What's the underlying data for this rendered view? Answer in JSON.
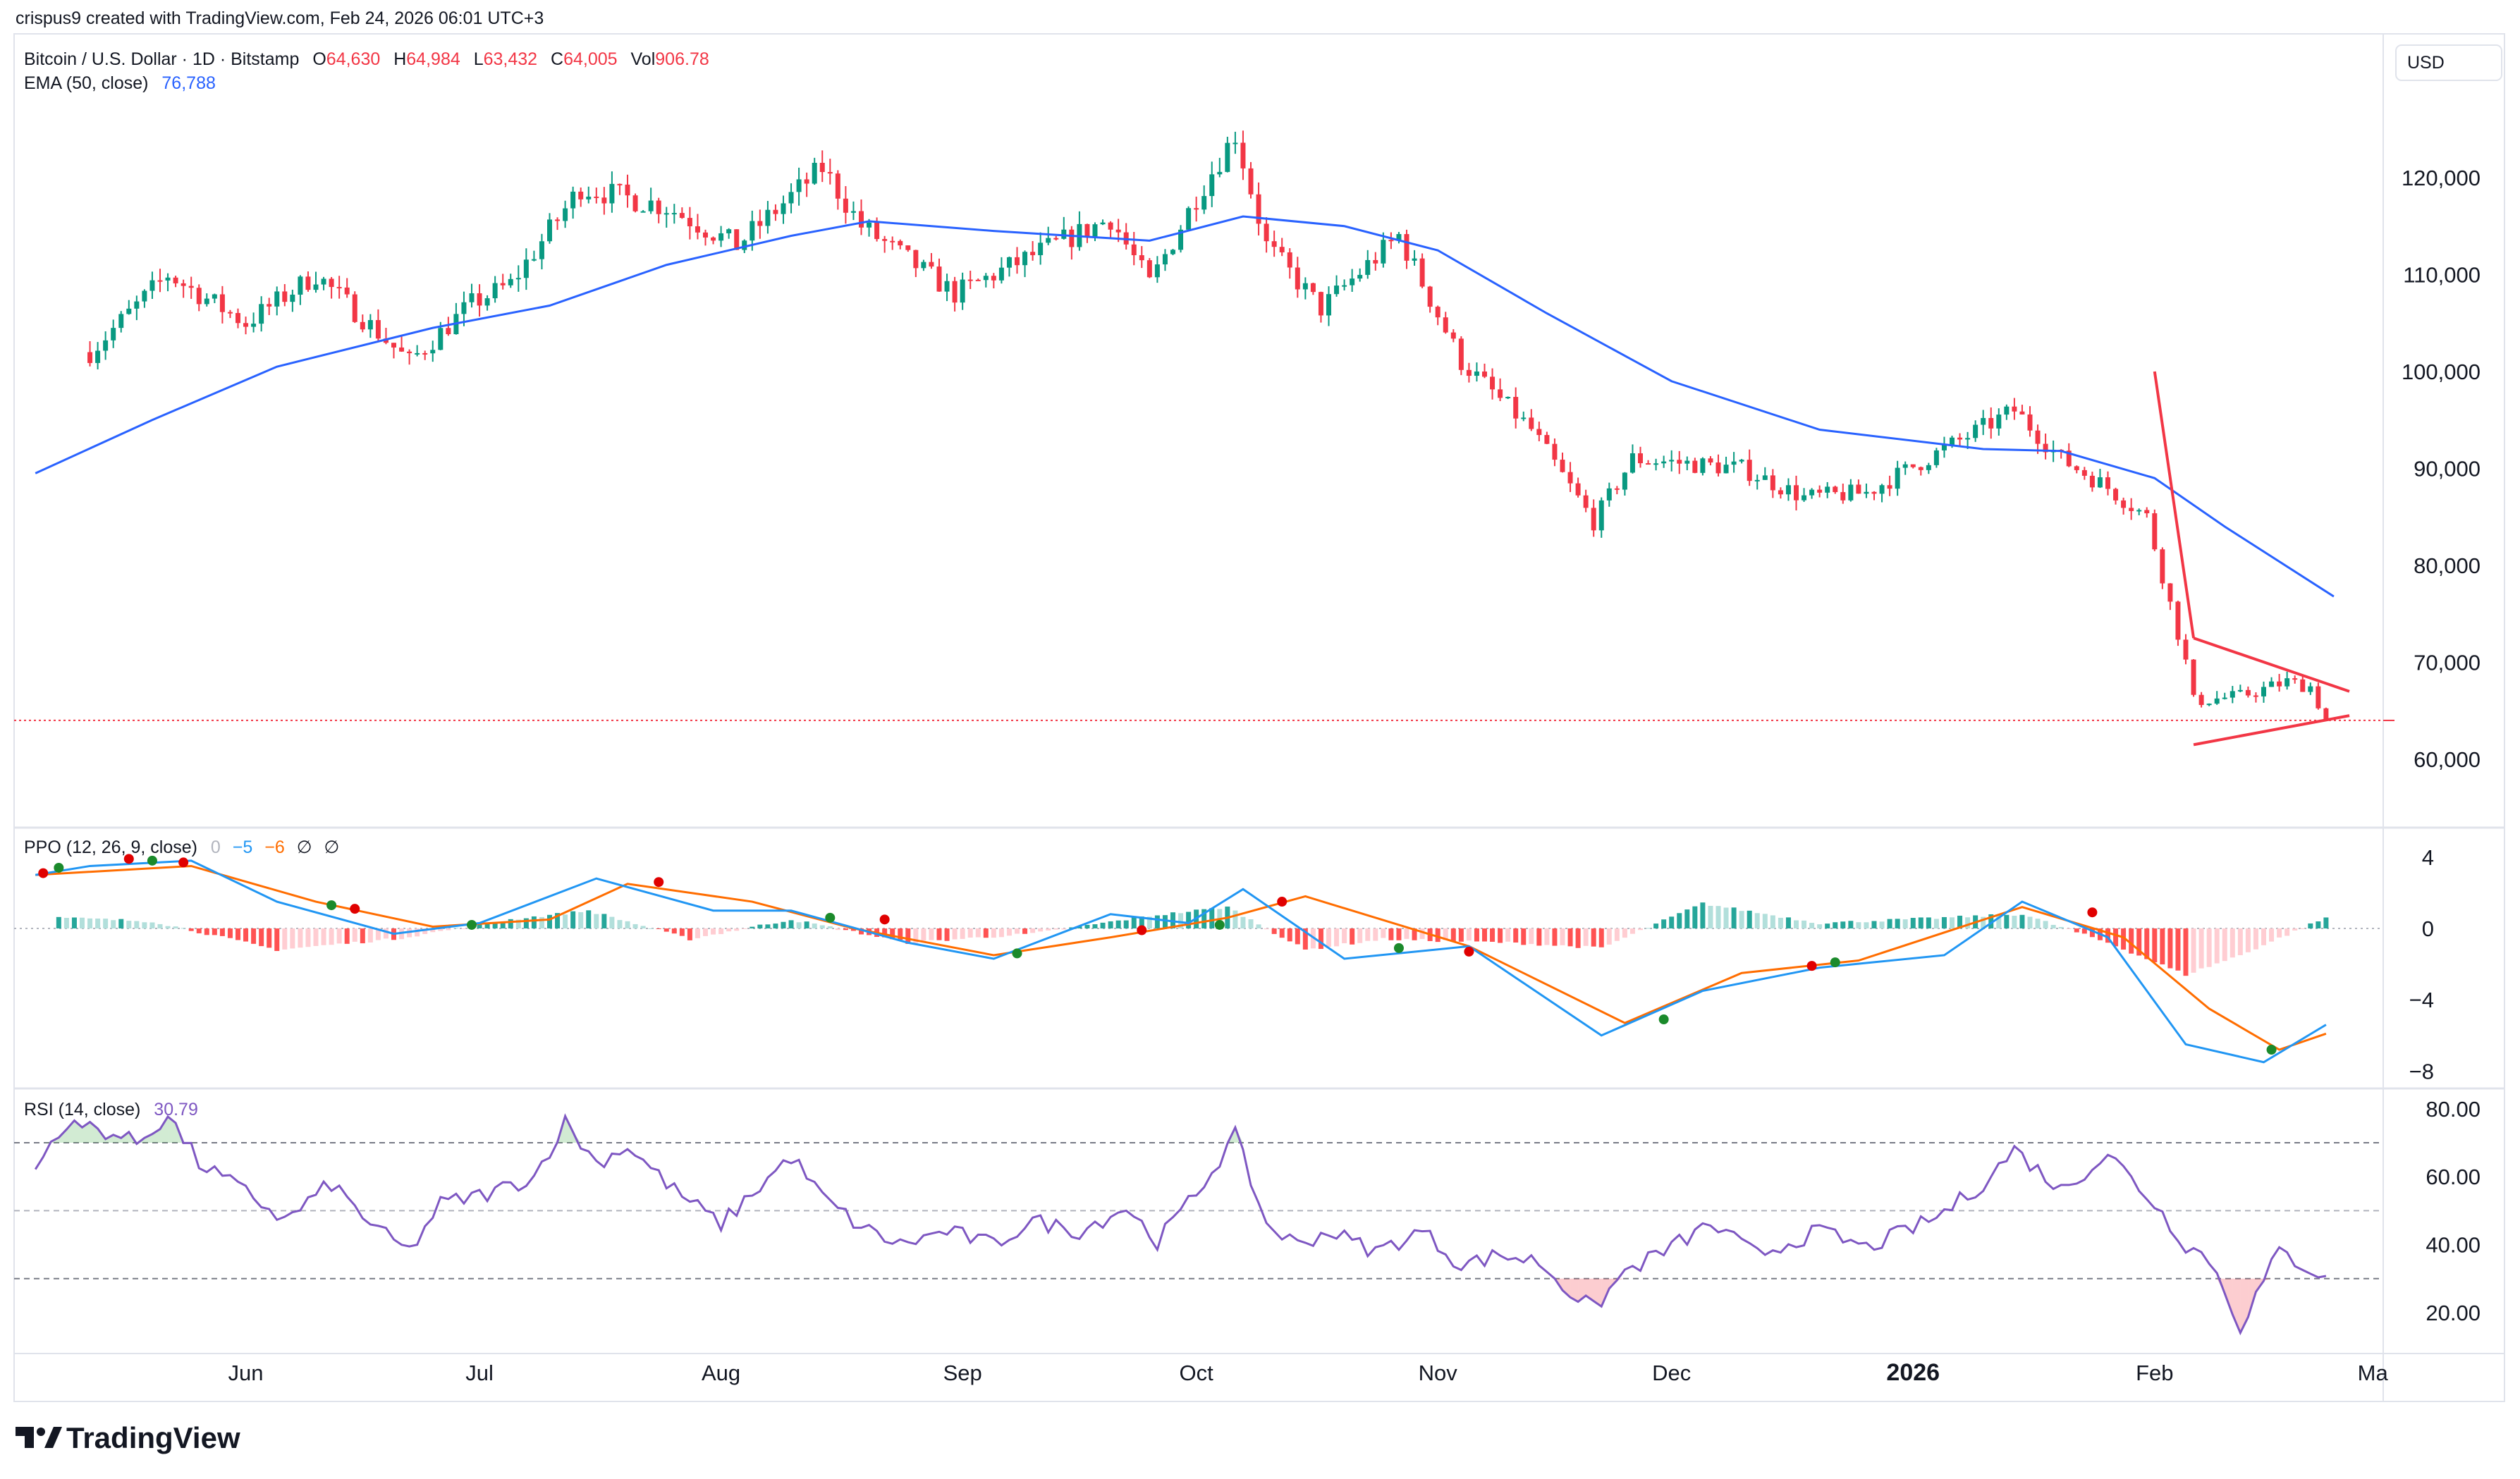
{
  "caption": "crispus9 created with TradingView.com, Feb 24, 2026 06:01 UTC+3",
  "brand": "TradingView",
  "currency_label": "USD",
  "header": {
    "symbol": "Bitcoin / U.S. Dollar · 1D · Bitstamp",
    "o_label": "O",
    "o_value": "64,630",
    "h_label": "H",
    "h_value": "64,984",
    "l_label": "L",
    "l_value": "63,432",
    "c_label": "C",
    "c_value": "64,005",
    "vol_label": "Vol",
    "vol_value": "906.78",
    "ema_label": "EMA (50, close)",
    "ema_value": "76,788"
  },
  "ppo_header": {
    "label": "PPO (12, 26, 9, close)",
    "v0": "0",
    "v1": "−5",
    "v2": "−6",
    "v3": "∅",
    "v4": "∅"
  },
  "rsi_header": {
    "label": "RSI (14, close)",
    "value": "30.79"
  },
  "colors": {
    "up": "#089981",
    "down": "#f23645",
    "ema": "#2962ff",
    "ppo": "#2196f3",
    "signal": "#ff6d00",
    "rsi": "#7e57c2",
    "trendline": "#f23645"
  },
  "chart_data": [
    {
      "type": "candlestick",
      "title": "Bitcoin / U.S. Dollar · 1D · Bitstamp",
      "x_ticks": [
        "Jun",
        "Jul",
        "Aug",
        "Sep",
        "Oct",
        "Nov",
        "Dec",
        "2026",
        "Feb",
        "Ma"
      ],
      "y_ticks": [
        60000,
        70000,
        80000,
        90000,
        100000,
        110000,
        120000
      ],
      "y_tick_labels": [
        "60,000",
        "70,000",
        "80,000",
        "90,000",
        "100,000",
        "110,000",
        "120,000"
      ],
      "ylim": [
        56000,
        128000
      ],
      "last_price": 64005,
      "close_series": {
        "name": "close",
        "dates": [
          "2025-05-12",
          "2025-05-22",
          "2025-06-01",
          "2025-06-10",
          "2025-06-22",
          "2025-06-30",
          "2025-07-05",
          "2025-07-14",
          "2025-07-25",
          "2025-08-03",
          "2025-08-14",
          "2025-08-19",
          "2025-08-31",
          "2025-09-10",
          "2025-09-20",
          "2025-09-25",
          "2025-10-01",
          "2025-10-06",
          "2025-10-10",
          "2025-10-17",
          "2025-10-27",
          "2025-11-04",
          "2025-11-13",
          "2025-11-21",
          "2025-11-26",
          "2025-12-10",
          "2025-12-18",
          "2025-12-26",
          "2026-01-05",
          "2026-01-14",
          "2026-01-20",
          "2026-01-26",
          "2026-01-31",
          "2026-02-05",
          "2026-02-06",
          "2026-02-12",
          "2026-02-18",
          "2026-02-21",
          "2026-02-23"
        ],
        "values": [
          102000,
          110000,
          105000,
          110000,
          101000,
          107000,
          109000,
          119000,
          117000,
          113000,
          121000,
          115000,
          108000,
          112000,
          115800,
          109000,
          118000,
          124500,
          113000,
          106500,
          114000,
          101000,
          94000,
          84500,
          91000,
          90000,
          87000,
          87500,
          92000,
          96000,
          91000,
          88000,
          85000,
          70000,
          66000,
          66500,
          68000,
          67500,
          64005
        ]
      },
      "ema_series": {
        "name": "EMA (50, close)",
        "dates": [
          "2025-05-05",
          "2025-05-20",
          "2025-06-05",
          "2025-06-25",
          "2025-07-10",
          "2025-07-25",
          "2025-08-10",
          "2025-08-20",
          "2025-09-05",
          "2025-09-25",
          "2025-10-07",
          "2025-10-20",
          "2025-11-01",
          "2025-11-15",
          "2025-12-01",
          "2025-12-20",
          "2026-01-10",
          "2026-01-20",
          "2026-02-01",
          "2026-02-10",
          "2026-02-24"
        ],
        "values": [
          89500,
          95000,
          100500,
          104500,
          106800,
          111000,
          114000,
          115500,
          114500,
          113500,
          116000,
          115000,
          112500,
          106000,
          99000,
          94000,
          92000,
          91800,
          89000,
          84000,
          76788
        ]
      },
      "annotations": [
        {
          "type": "trendline",
          "from": [
            "2026-02-01",
            100000
          ],
          "to": [
            "2026-02-06",
            72500
          ]
        },
        {
          "type": "trendline",
          "from": [
            "2026-02-06",
            72500
          ],
          "to": [
            "2026-02-26",
            67000
          ]
        },
        {
          "type": "trendline",
          "from": [
            "2026-02-06",
            61500
          ],
          "to": [
            "2026-02-26",
            64500
          ]
        }
      ]
    },
    {
      "type": "line",
      "title": "PPO (12, 26, 9, close)",
      "y_ticks": [
        4,
        0,
        -4,
        -8
      ],
      "y_tick_labels": [
        "4",
        "0",
        "−4",
        "−8"
      ],
      "ylim": [
        -9,
        5
      ],
      "series": [
        {
          "name": "ppo",
          "dates": [
            "2025-05-05",
            "2025-05-12",
            "2025-05-25",
            "2025-06-05",
            "2025-06-20",
            "2025-07-01",
            "2025-07-16",
            "2025-07-31",
            "2025-08-10",
            "2025-08-25",
            "2025-09-05",
            "2025-09-20",
            "2025-09-30",
            "2025-10-07",
            "2025-10-20",
            "2025-11-05",
            "2025-11-22",
            "2025-12-05",
            "2025-12-20",
            "2026-01-05",
            "2026-01-15",
            "2026-01-26",
            "2026-02-05",
            "2026-02-15",
            "2026-02-23"
          ],
          "values": [
            3.0,
            3.5,
            3.8,
            1.5,
            -0.3,
            0.3,
            2.8,
            1.0,
            1.0,
            -0.8,
            -1.7,
            0.8,
            0.3,
            2.2,
            -1.7,
            -1.0,
            -6.0,
            -3.5,
            -2.2,
            -1.5,
            1.5,
            -0.5,
            -6.5,
            -7.5,
            -5.4
          ]
        },
        {
          "name": "signal",
          "dates": [
            "2025-05-05",
            "2025-05-25",
            "2025-06-10",
            "2025-06-25",
            "2025-07-10",
            "2025-07-20",
            "2025-08-05",
            "2025-08-18",
            "2025-09-05",
            "2025-09-20",
            "2025-10-05",
            "2025-10-15",
            "2025-11-05",
            "2025-11-25",
            "2025-12-10",
            "2025-12-25",
            "2026-01-15",
            "2026-01-28",
            "2026-02-08",
            "2026-02-17",
            "2026-02-23"
          ],
          "values": [
            3.0,
            3.5,
            1.5,
            0.1,
            0.5,
            2.5,
            1.5,
            0.0,
            -1.5,
            -0.5,
            0.6,
            1.8,
            -1.0,
            -5.3,
            -2.5,
            -1.8,
            1.2,
            -0.5,
            -4.5,
            -6.8,
            -5.9
          ]
        }
      ],
      "histogram": {
        "dates": [
          "2025-05-08",
          "2025-05-20",
          "2025-06-05",
          "2025-06-20",
          "2025-07-05",
          "2025-07-15",
          "2025-07-28",
          "2025-08-10",
          "2025-08-25",
          "2025-09-10",
          "2025-09-25",
          "2025-10-05",
          "2025-10-15",
          "2025-10-25",
          "2025-11-10",
          "2025-11-22",
          "2025-12-05",
          "2025-12-20",
          "2026-01-05",
          "2026-01-15",
          "2026-01-26",
          "2026-02-05",
          "2026-02-12",
          "2026-02-23"
        ],
        "values": [
          0.6,
          0.4,
          -1.2,
          -0.6,
          0.5,
          1.0,
          -0.6,
          0.5,
          -0.8,
          -0.3,
          0.7,
          1.2,
          -1.2,
          -0.6,
          -0.8,
          -1.1,
          1.4,
          0.3,
          0.6,
          0.8,
          -0.8,
          -2.6,
          -1.5,
          0.6
        ]
      },
      "cross_points": [
        {
          "date": "2025-05-06",
          "value": 3.1,
          "kind": "bearish"
        },
        {
          "date": "2025-05-08",
          "value": 3.4,
          "kind": "bullish"
        },
        {
          "date": "2025-05-17",
          "value": 3.9,
          "kind": "bearish"
        },
        {
          "date": "2025-05-20",
          "value": 3.8,
          "kind": "bullish"
        },
        {
          "date": "2025-05-24",
          "value": 3.7,
          "kind": "bearish"
        },
        {
          "date": "2025-06-12",
          "value": 1.3,
          "kind": "bullish"
        },
        {
          "date": "2025-06-15",
          "value": 1.1,
          "kind": "bearish"
        },
        {
          "date": "2025-06-30",
          "value": 0.2,
          "kind": "bullish"
        },
        {
          "date": "2025-07-24",
          "value": 2.6,
          "kind": "bearish"
        },
        {
          "date": "2025-08-15",
          "value": 0.6,
          "kind": "bullish"
        },
        {
          "date": "2025-08-22",
          "value": 0.5,
          "kind": "bearish"
        },
        {
          "date": "2025-09-08",
          "value": -1.4,
          "kind": "bullish"
        },
        {
          "date": "2025-09-24",
          "value": -0.1,
          "kind": "bearish"
        },
        {
          "date": "2025-10-04",
          "value": 0.2,
          "kind": "bullish"
        },
        {
          "date": "2025-10-12",
          "value": 1.5,
          "kind": "bearish"
        },
        {
          "date": "2025-10-27",
          "value": -1.1,
          "kind": "bullish"
        },
        {
          "date": "2025-11-05",
          "value": -1.3,
          "kind": "bearish"
        },
        {
          "date": "2025-11-30",
          "value": -5.1,
          "kind": "bullish"
        },
        {
          "date": "2025-12-19",
          "value": -2.1,
          "kind": "bearish"
        },
        {
          "date": "2025-12-22",
          "value": -1.9,
          "kind": "bullish"
        },
        {
          "date": "2026-01-24",
          "value": 0.9,
          "kind": "bearish"
        },
        {
          "date": "2026-02-16",
          "value": -6.8,
          "kind": "bullish"
        }
      ]
    },
    {
      "type": "line",
      "title": "RSI (14, close)",
      "y_ticks": [
        80,
        60,
        40,
        20
      ],
      "y_tick_labels": [
        "80.00",
        "60.00",
        "40.00",
        "20.00"
      ],
      "levels": [
        70,
        50,
        30
      ],
      "ylim": [
        12,
        85
      ],
      "series": [
        {
          "name": "RSI",
          "dates": [
            "2025-05-05",
            "2025-05-08",
            "2025-05-12",
            "2025-05-18",
            "2025-05-22",
            "2025-05-26",
            "2025-06-02",
            "2025-06-06",
            "2025-06-12",
            "2025-06-18",
            "2025-06-22",
            "2025-06-26",
            "2025-07-02",
            "2025-07-08",
            "2025-07-12",
            "2025-07-16",
            "2025-07-20",
            "2025-07-26",
            "2025-08-01",
            "2025-08-05",
            "2025-08-10",
            "2025-08-14",
            "2025-08-19",
            "2025-08-24",
            "2025-08-30",
            "2025-09-05",
            "2025-09-10",
            "2025-09-16",
            "2025-09-22",
            "2025-09-26",
            "2025-10-01",
            "2025-10-06",
            "2025-10-10",
            "2025-10-14",
            "2025-10-18",
            "2025-10-24",
            "2025-10-30",
            "2025-11-04",
            "2025-11-09",
            "2025-11-14",
            "2025-11-18",
            "2025-11-21",
            "2025-11-25",
            "2025-11-30",
            "2025-12-06",
            "2025-12-12",
            "2025-12-20",
            "2025-12-26",
            "2026-01-04",
            "2026-01-10",
            "2026-01-14",
            "2026-01-20",
            "2026-01-26",
            "2026-02-01",
            "2026-02-05",
            "2026-02-08",
            "2026-02-12",
            "2026-02-17",
            "2026-02-20",
            "2026-02-23"
          ],
          "values": [
            62,
            74,
            75,
            70,
            78,
            64,
            54,
            47,
            58,
            44,
            38,
            52,
            55,
            60,
            76,
            64,
            69,
            56,
            46,
            55,
            66,
            54,
            45,
            40,
            44,
            40,
            47,
            44,
            51,
            41,
            55,
            72,
            46,
            40,
            44,
            38,
            44,
            34,
            37,
            35,
            26,
            21,
            32,
            38,
            46,
            37,
            44,
            39,
            48,
            58,
            68,
            56,
            67,
            52,
            40,
            36,
            16,
            38,
            34,
            30.79
          ]
        }
      ]
    }
  ]
}
